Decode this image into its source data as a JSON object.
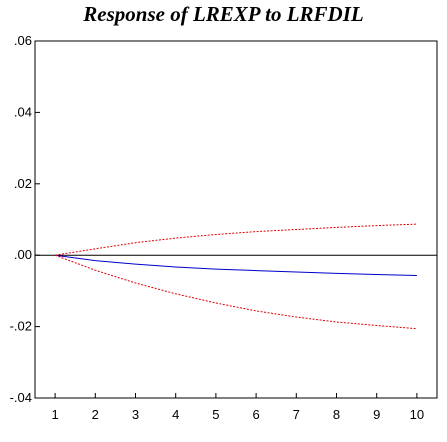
{
  "chart_data": {
    "type": "line",
    "title": "Response of LREXP to LRFDIL",
    "xlabel": "",
    "ylabel": "",
    "x": [
      1,
      2,
      3,
      4,
      5,
      6,
      7,
      8,
      9,
      10
    ],
    "x_tick_labels": [
      "1",
      "2",
      "3",
      "4",
      "5",
      "6",
      "7",
      "8",
      "9",
      "10"
    ],
    "xlim": [
      0.5,
      10.5
    ],
    "ylim": [
      -0.04,
      0.06
    ],
    "y_ticks": [
      -0.04,
      -0.02,
      0.0,
      0.02,
      0.04,
      0.06
    ],
    "y_tick_labels": [
      "-.04",
      "-.02",
      ".00",
      ".02",
      ".04",
      ".06"
    ],
    "zero_line": true,
    "grid": false,
    "series": [
      {
        "role": "response",
        "color": "#0000cc",
        "style": "solid",
        "values": [
          0.0,
          -0.0015,
          -0.0025,
          -0.0033,
          -0.0039,
          -0.0043,
          -0.0047,
          -0.0051,
          -0.0054,
          -0.0057
        ]
      },
      {
        "role": "upper-band",
        "color": "#e00000",
        "style": "dashed",
        "values": [
          0.0,
          0.0018,
          0.0035,
          0.0048,
          0.0058,
          0.0066,
          0.0072,
          0.0078,
          0.0083,
          0.0087
        ]
      },
      {
        "role": "lower-band",
        "color": "#e00000",
        "style": "dashed",
        "values": [
          0.0,
          -0.0042,
          -0.0078,
          -0.0108,
          -0.0134,
          -0.0156,
          -0.0173,
          -0.0187,
          -0.0197,
          -0.0206
        ]
      }
    ]
  }
}
